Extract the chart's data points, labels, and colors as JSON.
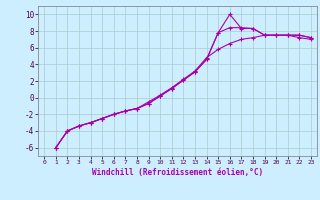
{
  "xlabel": "Windchill (Refroidissement éolien,°C)",
  "bg_color": "#cceeff",
  "grid_color": "#aacccc",
  "line_color": "#aa00aa",
  "xlim": [
    -0.5,
    23.5
  ],
  "ylim": [
    -7,
    11
  ],
  "xticks": [
    0,
    1,
    2,
    3,
    4,
    5,
    6,
    7,
    8,
    9,
    10,
    11,
    12,
    13,
    14,
    15,
    16,
    17,
    18,
    19,
    20,
    21,
    22,
    23
  ],
  "yticks": [
    -6,
    -4,
    -2,
    0,
    2,
    4,
    6,
    8,
    10
  ],
  "line1_x": [
    1,
    2,
    3,
    4,
    5,
    6,
    7,
    8,
    9,
    10,
    11,
    12,
    13,
    14,
    15,
    16,
    17,
    18,
    19,
    20,
    21,
    22,
    23
  ],
  "line1_y": [
    -6.0,
    -4.0,
    -3.4,
    -3.0,
    -2.5,
    -2.0,
    -1.6,
    -1.3,
    -0.7,
    0.2,
    1.1,
    2.1,
    3.1,
    4.6,
    7.8,
    10.0,
    8.3,
    8.3,
    7.5,
    7.5,
    7.5,
    7.5,
    7.2
  ],
  "line2_x": [
    1,
    2,
    3,
    4,
    5,
    6,
    7,
    8,
    9,
    10,
    11,
    12,
    13,
    14,
    15,
    16,
    17,
    18,
    19,
    20,
    21,
    22,
    23
  ],
  "line2_y": [
    -6.0,
    -4.0,
    -3.4,
    -3.0,
    -2.5,
    -2.0,
    -1.6,
    -1.3,
    -0.7,
    0.2,
    1.1,
    2.1,
    3.1,
    4.6,
    7.8,
    8.4,
    8.4,
    8.3,
    7.5,
    7.5,
    7.5,
    7.5,
    7.2
  ],
  "line3_x": [
    1,
    2,
    3,
    4,
    5,
    6,
    7,
    8,
    9,
    10,
    11,
    12,
    13,
    14,
    15,
    16,
    17,
    18,
    19,
    20,
    21,
    22,
    23
  ],
  "line3_y": [
    -6.0,
    -4.0,
    -3.4,
    -3.0,
    -2.5,
    -2.0,
    -1.6,
    -1.3,
    -0.5,
    0.3,
    1.2,
    2.2,
    3.2,
    4.8,
    5.8,
    6.5,
    7.0,
    7.2,
    7.5,
    7.5,
    7.5,
    7.2,
    7.0
  ]
}
